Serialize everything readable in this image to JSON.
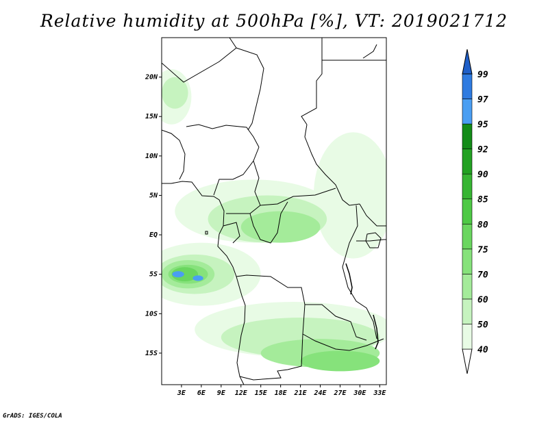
{
  "title": "Relative humidity at 500hPa [%], VT: 2019021712",
  "credit": "GrADS: IGES/COLA",
  "map": {
    "lat_range": [
      -19,
      25
    ],
    "lon_range": [
      0,
      34
    ],
    "lat_ticks": [
      {
        "value": 20,
        "label": "20N"
      },
      {
        "value": 15,
        "label": "15N"
      },
      {
        "value": 10,
        "label": "10N"
      },
      {
        "value": 5,
        "label": "5N"
      },
      {
        "value": 0,
        "label": "EQ"
      },
      {
        "value": -5,
        "label": "5S"
      },
      {
        "value": -10,
        "label": "10S"
      },
      {
        "value": -15,
        "label": "15S"
      }
    ],
    "lon_ticks": [
      {
        "value": 3,
        "label": "3E"
      },
      {
        "value": 6,
        "label": "6E"
      },
      {
        "value": 9,
        "label": "9E"
      },
      {
        "value": 12,
        "label": "12E"
      },
      {
        "value": 15,
        "label": "15E"
      },
      {
        "value": 18,
        "label": "18E"
      },
      {
        "value": 21,
        "label": "21E"
      },
      {
        "value": 24,
        "label": "24E"
      },
      {
        "value": 27,
        "label": "27E"
      },
      {
        "value": 30,
        "label": "30E"
      },
      {
        "value": 33,
        "label": "33E"
      }
    ]
  },
  "colorbar": {
    "levels": [
      "40",
      "50",
      "60",
      "70",
      "75",
      "80",
      "85",
      "90",
      "92",
      "95",
      "97",
      "99"
    ],
    "colors": [
      "#e8fbe5",
      "#c6f3bf",
      "#a4eb9a",
      "#86e27b",
      "#6ad65f",
      "#4ec945",
      "#37b533",
      "#22a122",
      "#138c18",
      "#4a9ef2",
      "#2f7be0",
      "#1f5fc8"
    ],
    "extend": "both"
  },
  "humidity_areas": [
    {
      "level": "40",
      "region": "northwest coast",
      "center": [
        1.5,
        17.5
      ],
      "radius": [
        3.0,
        3.5
      ]
    },
    {
      "level": "40",
      "region": "central africa band",
      "center": [
        14,
        3
      ],
      "radius": [
        12,
        4
      ]
    },
    {
      "level": "40",
      "region": "east",
      "center": [
        29,
        5
      ],
      "radius": [
        6,
        8
      ]
    },
    {
      "level": "40",
      "region": "gulf of guinea / congo",
      "center": [
        6,
        -5
      ],
      "radius": [
        9,
        4
      ]
    },
    {
      "level": "40",
      "region": "southern band",
      "center": [
        20,
        -12
      ],
      "radius": [
        15,
        3.5
      ]
    },
    {
      "level": "50",
      "region": "northwest coast",
      "center": [
        2,
        18
      ],
      "radius": [
        2,
        2
      ]
    },
    {
      "level": "50",
      "region": "central africa band",
      "center": [
        16,
        2
      ],
      "radius": [
        9,
        3
      ]
    },
    {
      "level": "50",
      "region": "gulf of guinea / congo",
      "center": [
        5,
        -5
      ],
      "radius": [
        6,
        2.5
      ]
    },
    {
      "level": "50",
      "region": "southern band",
      "center": [
        21,
        -13
      ],
      "radius": [
        12,
        2.5
      ]
    },
    {
      "level": "60",
      "region": "central africa band",
      "center": [
        18,
        1
      ],
      "radius": [
        6,
        2
      ]
    },
    {
      "level": "60",
      "region": "gulf of guinea / congo",
      "center": [
        4,
        -5
      ],
      "radius": [
        4,
        1.8
      ]
    },
    {
      "level": "60",
      "region": "southern band",
      "center": [
        24,
        -15
      ],
      "radius": [
        9,
        1.8
      ]
    },
    {
      "level": "70",
      "region": "gulf of guinea / congo",
      "center": [
        4,
        -5
      ],
      "radius": [
        3,
        1.2
      ]
    },
    {
      "level": "70",
      "region": "southern band",
      "center": [
        27,
        -16
      ],
      "radius": [
        6,
        1.3
      ]
    },
    {
      "level": "75",
      "region": "gulf of guinea / congo",
      "center": [
        3.5,
        -5
      ],
      "radius": [
        2,
        0.9
      ]
    },
    {
      "level": "95",
      "region": "gulf of guinea / congo",
      "center": [
        2.5,
        -5
      ],
      "radius": [
        0.9,
        0.4
      ]
    },
    {
      "level": "95",
      "region": "gulf of guinea / congo",
      "center": [
        5.5,
        -5.5
      ],
      "radius": [
        0.8,
        0.35
      ]
    }
  ]
}
